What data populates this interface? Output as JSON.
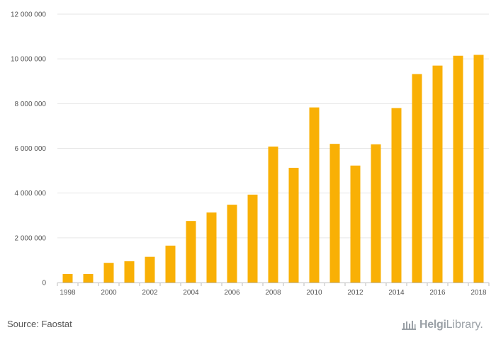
{
  "chart_data": {
    "type": "bar",
    "categories": [
      "1998",
      "1999",
      "2000",
      "2001",
      "2002",
      "2003",
      "2004",
      "2005",
      "2006",
      "2007",
      "2008",
      "2009",
      "2010",
      "2011",
      "2012",
      "2013",
      "2014",
      "2015",
      "2016",
      "2017",
      "2018"
    ],
    "values": [
      380000,
      380000,
      880000,
      950000,
      1150000,
      1650000,
      2750000,
      3130000,
      3480000,
      3930000,
      6080000,
      5130000,
      7830000,
      6200000,
      5230000,
      6180000,
      7800000,
      9320000,
      9700000,
      10140000,
      10180000
    ],
    "x_tick_labels": [
      "1998",
      "2000",
      "2002",
      "2004",
      "2006",
      "2008",
      "2010",
      "2012",
      "2014",
      "2016",
      "2018"
    ],
    "y_tick_labels": [
      "0",
      "2 000 000",
      "4 000 000",
      "6 000 000",
      "8 000 000",
      "10 000 000",
      "12 000 000"
    ],
    "ylim": [
      0,
      12000000
    ],
    "grid": true,
    "bar_color": "#f9b005"
  },
  "footer": {
    "source": "Source: Faostat",
    "logo_part1": "Helgi",
    "logo_part2": "Library."
  }
}
